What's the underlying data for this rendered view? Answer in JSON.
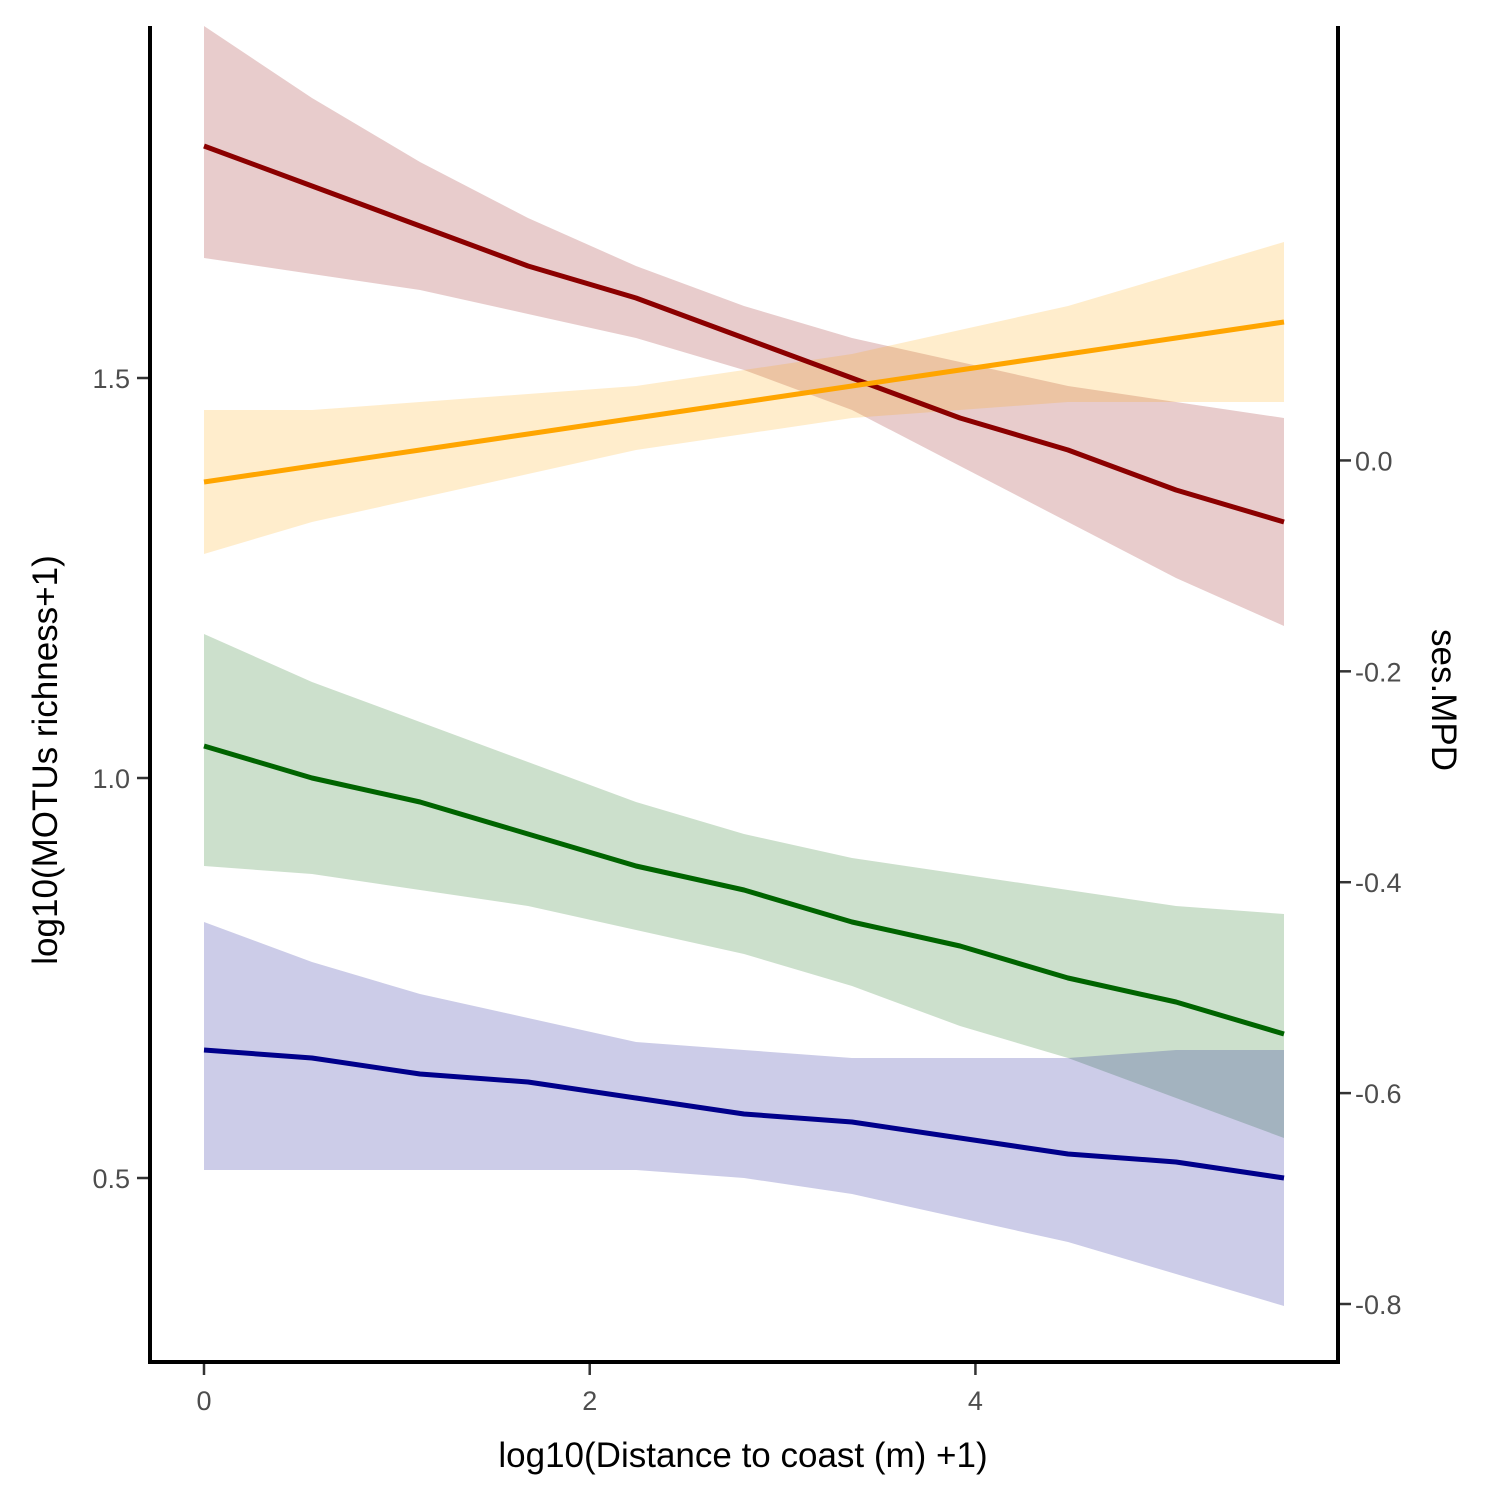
{
  "chart_data": {
    "type": "line",
    "title": "",
    "xlabel": "log10(Distance to coast (m) +1)",
    "ylabel_left": "log10(MOTUs richness+1)",
    "ylabel_right": "ses.MPD",
    "xlim": [
      -0.28,
      5.88
    ],
    "ylim_left": [
      0.27,
      1.94
    ],
    "ylim_right": [
      -0.855,
      0.412
    ],
    "x_ticks": [
      0,
      2,
      4
    ],
    "x_tick_labels": [
      "0",
      "2",
      "4"
    ],
    "y_left_ticks": [
      0.5,
      1.0,
      1.5
    ],
    "y_left_tick_labels": [
      "0.5",
      "1.0",
      "1.5"
    ],
    "y_right_ticks": [
      0.0,
      -0.2,
      -0.4,
      -0.6,
      -0.8
    ],
    "y_right_tick_labels": [
      "0.0",
      "-0.2",
      "-0.4",
      "-0.6",
      "-0.8"
    ],
    "grid": false,
    "legend": "none",
    "series": [
      {
        "color": "#8B0000",
        "axis": "left",
        "x": [
          0,
          0.56,
          1.12,
          1.68,
          2.24,
          2.8,
          3.36,
          3.92,
          4.48,
          5.04,
          5.6
        ],
        "y": [
          1.79,
          1.74,
          1.69,
          1.64,
          1.6,
          1.55,
          1.5,
          1.45,
          1.41,
          1.36,
          1.32
        ],
        "lower": [
          1.65,
          1.63,
          1.61,
          1.58,
          1.55,
          1.51,
          1.46,
          1.39,
          1.32,
          1.25,
          1.19
        ],
        "upper": [
          1.94,
          1.85,
          1.77,
          1.7,
          1.64,
          1.59,
          1.55,
          1.52,
          1.49,
          1.47,
          1.45
        ]
      },
      {
        "color": "#FFA500",
        "axis": "left",
        "x": [
          0,
          0.56,
          1.12,
          1.68,
          2.24,
          2.8,
          3.36,
          3.92,
          4.48,
          5.04,
          5.6
        ],
        "y": [
          1.37,
          1.39,
          1.41,
          1.43,
          1.45,
          1.47,
          1.49,
          1.51,
          1.53,
          1.55,
          1.57
        ],
        "lower": [
          1.28,
          1.32,
          1.35,
          1.38,
          1.41,
          1.43,
          1.45,
          1.46,
          1.47,
          1.47,
          1.47
        ],
        "upper": [
          1.46,
          1.46,
          1.47,
          1.48,
          1.49,
          1.51,
          1.53,
          1.56,
          1.59,
          1.63,
          1.67
        ]
      },
      {
        "color": "#006400",
        "axis": "left",
        "x": [
          0,
          0.56,
          1.12,
          1.68,
          2.24,
          2.8,
          3.36,
          3.92,
          4.48,
          5.04,
          5.6
        ],
        "y": [
          1.04,
          1.0,
          0.97,
          0.93,
          0.89,
          0.86,
          0.82,
          0.79,
          0.75,
          0.72,
          0.68
        ],
        "lower": [
          0.89,
          0.88,
          0.86,
          0.84,
          0.81,
          0.78,
          0.74,
          0.69,
          0.65,
          0.6,
          0.55
        ],
        "upper": [
          1.18,
          1.12,
          1.07,
          1.02,
          0.97,
          0.93,
          0.9,
          0.88,
          0.86,
          0.84,
          0.83
        ]
      },
      {
        "color": "#00008B",
        "axis": "left",
        "x": [
          0,
          0.56,
          1.12,
          1.68,
          2.24,
          2.8,
          3.36,
          3.92,
          4.48,
          5.04,
          5.6
        ],
        "y": [
          0.66,
          0.65,
          0.63,
          0.62,
          0.6,
          0.58,
          0.57,
          0.55,
          0.53,
          0.52,
          0.5
        ],
        "lower": [
          0.51,
          0.51,
          0.51,
          0.51,
          0.51,
          0.5,
          0.48,
          0.45,
          0.42,
          0.38,
          0.34
        ],
        "upper": [
          0.82,
          0.77,
          0.73,
          0.7,
          0.67,
          0.66,
          0.65,
          0.65,
          0.65,
          0.66,
          0.66
        ]
      }
    ]
  }
}
